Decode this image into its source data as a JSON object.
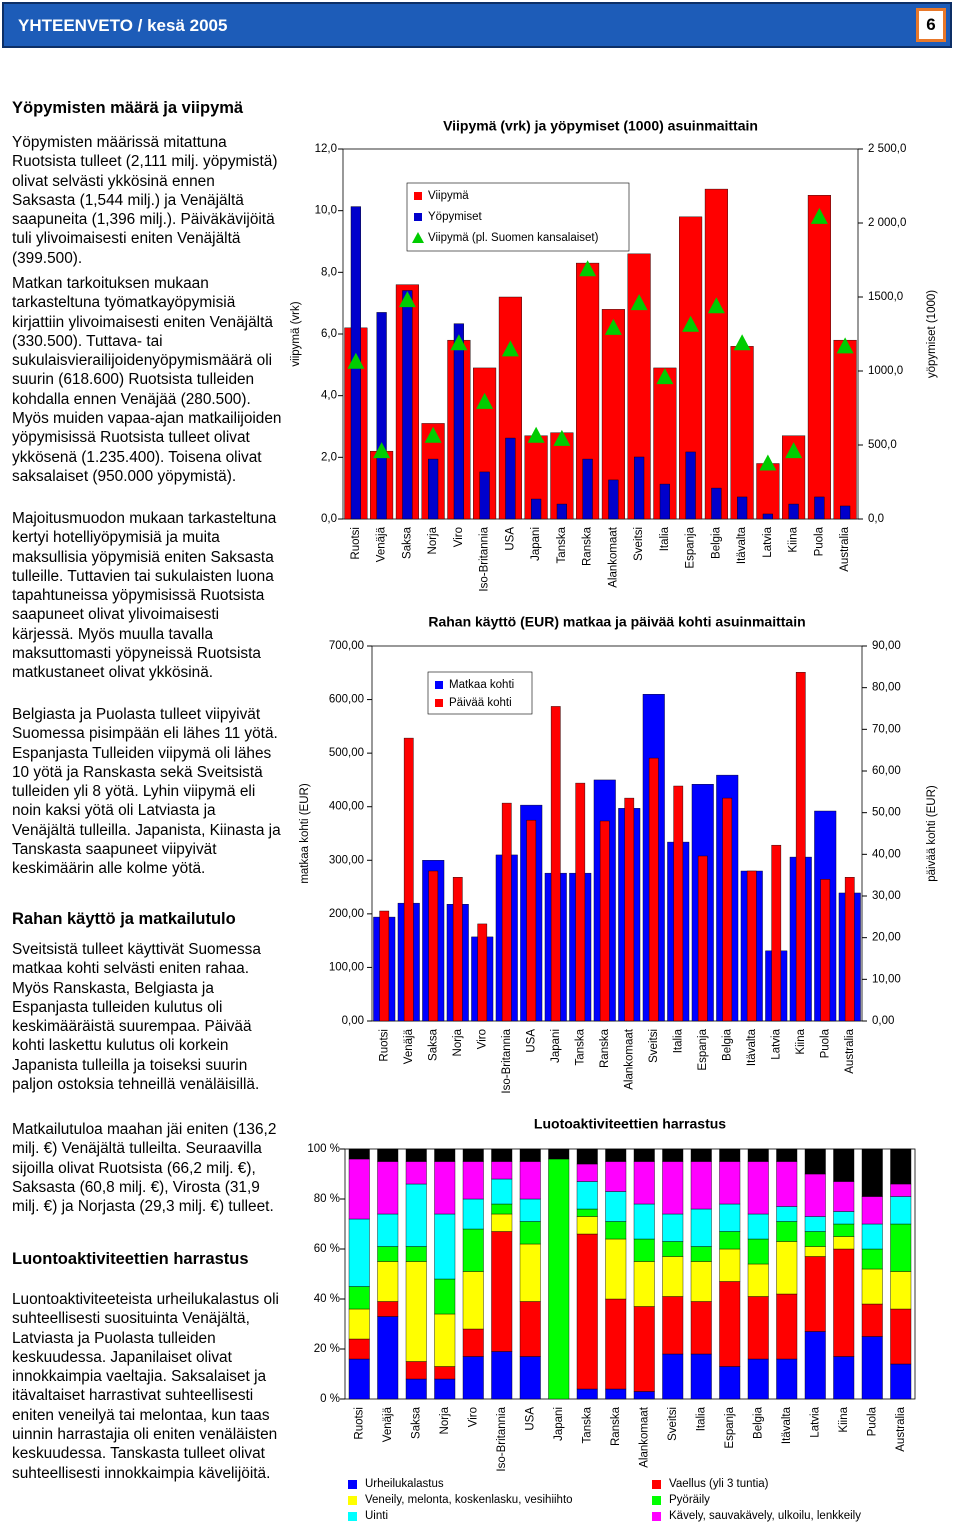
{
  "header": {
    "title": "YHTEENVETO / kesä 2005",
    "page": "6"
  },
  "article": {
    "heading_1": "Yöpymisten määrä ja viipymä",
    "paragraphs_1": [
      "Yöpymisten määrissä mitattuna Ruotsista tulleet (2,111 milj. yöpymistä) olivat selvästi ykkösinä ennen Saksasta (1,544 milj.) ja Venäjältä saapuneita (1,396 milj.). Päiväkävijöitä tuli ylivoimaisesti eniten Venäjältä (399.500).",
      "Matkan tarkoituksen mukaan tarkasteltuna työmatkayöpymisiä kirjattiin ylivoimaisesti eniten Venäjältä (330.500). Tuttava- tai sukulaisvierailijoidenyöpymismäärä oli suurin (618.600) Ruotsista tulleiden kohdalla ennen Venäjää (280.500). Myös muiden vapaa-ajan matkailijoiden yöpymisissä Ruotsista tulleet olivat ykkösenä (1.235.400). Toisena olivat saksalaiset (950.000 yöpymistä).",
      "Majoitusmuodon mukaan tarkasteltuna kertyi hotelliyöpymisiä ja muita maksullisia yöpymisiä eniten Saksasta tulleille. Tuttavien tai sukulaisten luona tapahtuneissa yöpymisissä Ruotsista saapuneet olivat ylivoimaisesti kärjessä. Myös muulla tavalla maksuttomasti yöpyneissä Ruotsista matkustaneet olivat ykkösinä.",
      "Belgiasta ja Puolasta tulleet viipyivät Suomessa pisimpään eli lähes 11 yötä. Espanjasta Tulleiden viipymä oli lähes 10 yötä ja Ranskasta sekä Sveitsistä tulleiden yli 8 yötä. Lyhin viipymä eli noin kaksi yötä oli Latviasta ja Venäjältä tulleilla. Japanista, Kiinasta ja Tanskasta saapuneet viipyivät keskimäärin alle kolme yötä."
    ],
    "heading_2": "Rahan käyttö ja matkailutulo",
    "paragraphs_2": [
      "Sveitsistä tulleet käyttivät Suomessa matkaa kohti selvästi eniten rahaa. Myös Ranskasta, Belgiasta ja Espanjasta tulleiden kulutus oli keskimääräistä suurempaa. Päivää kohti laskettu kulutus oli korkein Japanista tulleilla ja toiseksi suurin paljon ostoksia tehneillä venäläisillä.",
      "Matkailutuloa maahan jäi eniten (136,2 milj. €) Venäjältä tulleilta. Seuraavilla sijoilla olivat Ruotsista (66,2 milj. €), Saksasta (60,8 milj. €), Virosta (31,9 milj. €) ja Norjasta (29,3 milj. €) tulleet."
    ],
    "heading_3": "Luontoaktiviteettien harrastus",
    "paragraphs_3": [
      "Luontoaktiviteeteista urheilukalastus oli suhteellisesti suosituinta Venäjältä, Latviasta ja Puolasta tulleiden keskuudessa. Japanilaiset olivat innokkaimpia vaeltajia. Saksalaiset ja itävaltaiset harrastivat suhteellisesti eniten veneilyä tai melontaa, kun taas uinnin harrastajia oli eniten venäläisten keskuudessa. Tanskasta tulleet olivat suhteellisesti innokkaimpia kävelijöitä."
    ]
  },
  "chart_data": [
    {
      "type": "bar",
      "title": "Viipymä (vrk) ja yöpymiset (1000) asuinmaittain",
      "y_label": "viipymä (vrk)",
      "y2_label": "yöpymiset (1000)",
      "categories": [
        "Ruotsi",
        "Venäjä",
        "Saksa",
        "Norja",
        "Viro",
        "Iso-Britannia",
        "USA",
        "Japani",
        "Tanska",
        "Ranska",
        "Alankomaat",
        "Sveitsi",
        "Italia",
        "Espanja",
        "Belgia",
        "Itävalta",
        "Latvia",
        "Kiina",
        "Puola",
        "Australia"
      ],
      "series": [
        {
          "name": "Viipymä",
          "color": "#ff0000",
          "values": [
            6.2,
            2.2,
            7.6,
            3.1,
            5.8,
            4.9,
            7.2,
            2.7,
            2.8,
            8.3,
            6.8,
            8.6,
            4.9,
            9.8,
            10.7,
            5.6,
            1.8,
            2.7,
            10.5,
            5.8
          ]
        },
        {
          "name": "Yöpymiset",
          "color": "#0000cc",
          "axis": "y2",
          "values": [
            2111,
            1396,
            1544,
            405,
            1320,
            318,
            547,
            135,
            101,
            405,
            264,
            419,
            236,
            453,
            209,
            149,
            34,
            101,
            149,
            88
          ]
        },
        {
          "name": "Viipymä (pl. Suomen kansalaiset)",
          "color": "#00cc00",
          "marker": "triangle",
          "values": [
            5.1,
            2.2,
            7.1,
            2.7,
            5.7,
            3.8,
            5.5,
            2.7,
            2.6,
            8.1,
            6.2,
            7.0,
            4.6,
            6.3,
            6.9,
            5.7,
            1.8,
            2.2,
            9.8,
            5.6
          ]
        }
      ],
      "ylim": [
        0,
        12
      ],
      "yticks": [
        {
          "value": 0,
          "label": "0,0"
        },
        {
          "value": 2,
          "label": "2,0"
        },
        {
          "value": 4,
          "label": "4,0"
        },
        {
          "value": 6,
          "label": "6,0"
        },
        {
          "value": 8,
          "label": "8,0"
        },
        {
          "value": 10,
          "label": "10,0"
        },
        {
          "value": 12,
          "label": "12,0"
        }
      ],
      "y2lim": [
        0,
        2500
      ],
      "y2ticks": [
        {
          "value": 0,
          "label": "0,0"
        },
        {
          "value": 500,
          "label": "500,0"
        },
        {
          "value": 1000,
          "label": "1000,0"
        },
        {
          "value": 1500,
          "label": "1500,0"
        },
        {
          "value": 2000,
          "label": "2 000,0"
        },
        {
          "value": 2500,
          "label": "2 500,0"
        }
      ],
      "legend": "upper left"
    },
    {
      "type": "bar",
      "title": "Rahan käyttö (EUR) matkaa ja päivää kohti asuinmaittain",
      "y_label": "matkaa kohti (EUR)",
      "y2_label": "päivää kohti (EUR)",
      "categories": [
        "Ruotsi",
        "Venäjä",
        "Saksa",
        "Norja",
        "Viro",
        "Iso-Britannia",
        "USA",
        "Japani",
        "Tanska",
        "Ranska",
        "Alankomaat",
        "Sveitsi",
        "Italia",
        "Espanja",
        "Belgia",
        "Itävalta",
        "Latvia",
        "Kiina",
        "Puola",
        "Australia"
      ],
      "series": [
        {
          "name": "Matkaa kohti",
          "color": "#0000ff",
          "values": [
            194,
            220,
            300,
            218,
            157,
            310,
            403,
            276,
            276,
            450,
            397,
            610,
            334,
            442,
            459,
            280,
            131,
            306,
            392,
            239
          ]
        },
        {
          "name": "Päivää kohti",
          "color": "#ff0000",
          "axis": "y2",
          "values": [
            26.4,
            67.9,
            36,
            34.5,
            23.3,
            52.3,
            48.2,
            75.5,
            57.1,
            48,
            53.5,
            63.1,
            56.4,
            39.6,
            53.5,
            36,
            42.2,
            83.7,
            34,
            34.5
          ]
        }
      ],
      "ylim": [
        0,
        700
      ],
      "yticks": [
        {
          "value": 0,
          "label": "0,00"
        },
        {
          "value": 100,
          "label": "100,00"
        },
        {
          "value": 200,
          "label": "200,00"
        },
        {
          "value": 300,
          "label": "300,00"
        },
        {
          "value": 400,
          "label": "400,00"
        },
        {
          "value": 500,
          "label": "500,00"
        },
        {
          "value": 600,
          "label": "600,00"
        },
        {
          "value": 700,
          "label": "700,00"
        }
      ],
      "y2lim": [
        0,
        90
      ],
      "y2ticks": [
        {
          "value": 0,
          "label": "0,00"
        },
        {
          "value": 10,
          "label": "10,00"
        },
        {
          "value": 20,
          "label": "20,00"
        },
        {
          "value": 30,
          "label": "30,00"
        },
        {
          "value": 40,
          "label": "40,00"
        },
        {
          "value": 50,
          "label": "50,00"
        },
        {
          "value": 60,
          "label": "60,00"
        },
        {
          "value": 70,
          "label": "70,00"
        },
        {
          "value": 80,
          "label": "80,00"
        },
        {
          "value": 90,
          "label": "90,00"
        }
      ],
      "legend": "upper left"
    },
    {
      "type": "stacked_bar",
      "title": "Luotoaktiviteettien harrastus",
      "categories": [
        "Ruotsi",
        "Venäjä",
        "Saksa",
        "Norja",
        "Viro",
        "Iso-Britannia",
        "USA",
        "Japani",
        "Tanska",
        "Ranska",
        "Alankomaat",
        "Sveitsi",
        "Italia",
        "Espanja",
        "Belgia",
        "Itävalta",
        "Latvia",
        "Kiina",
        "Puola",
        "Australia"
      ],
      "series": [
        {
          "name": "Urheilukalastus",
          "color": "#0000ff",
          "values": [
            16,
            33,
            8,
            8,
            17,
            19,
            17,
            0,
            4,
            4,
            3,
            18,
            18,
            13,
            16,
            16,
            27,
            17,
            25,
            14
          ]
        },
        {
          "name": "Vaellus (yli 3 tuntia)",
          "color": "#ff0000",
          "values": [
            8,
            6,
            7,
            5,
            11,
            48,
            22,
            0,
            62,
            36,
            34,
            23,
            21,
            34,
            25,
            26,
            30,
            43,
            13,
            22
          ]
        },
        {
          "name": "Veneily, melonta, koskenlasku, vesihiihto",
          "color": "#ffff00",
          "values": [
            12,
            16,
            40,
            21,
            23,
            7,
            23,
            0,
            7,
            24,
            18,
            16,
            16,
            13,
            13,
            21,
            4,
            5,
            14,
            15
          ]
        },
        {
          "name": "Pyöräily",
          "color": "#00ff00",
          "values": [
            9,
            6,
            6,
            14,
            17,
            4,
            9,
            96,
            3,
            7,
            9,
            6,
            6,
            7,
            10,
            8,
            6,
            5,
            8,
            19
          ]
        },
        {
          "name": "Uinti",
          "color": "#00ffff",
          "values": [
            27,
            13,
            25,
            26,
            12,
            10,
            9,
            0,
            11,
            12,
            14,
            11,
            15,
            11,
            10,
            6,
            6,
            5,
            10,
            11
          ]
        },
        {
          "name": "Kävely, sauvakävely, ulkoilu, lenkkeily",
          "color": "#ff00ff",
          "values": [
            24,
            21,
            9,
            21,
            15,
            7,
            15,
            0,
            7,
            12,
            17,
            21,
            19,
            17,
            21,
            18,
            17,
            12,
            11,
            5
          ]
        },
        {
          "color": "#000000",
          "values": [
            4,
            5,
            5,
            5,
            5,
            5,
            5,
            4,
            6,
            5,
            5,
            5,
            5,
            5,
            5,
            5,
            10,
            13,
            19,
            14
          ]
        }
      ],
      "ylim": [
        0,
        100
      ],
      "yticks": [
        {
          "value": 0,
          "label": "0 %"
        },
        {
          "value": 20,
          "label": "20 %"
        },
        {
          "value": 40,
          "label": "40 %"
        },
        {
          "value": 60,
          "label": "60 %"
        },
        {
          "value": 80,
          "label": "80 %"
        },
        {
          "value": 100,
          "label": "100 %"
        }
      ],
      "legend": "bottom"
    }
  ]
}
